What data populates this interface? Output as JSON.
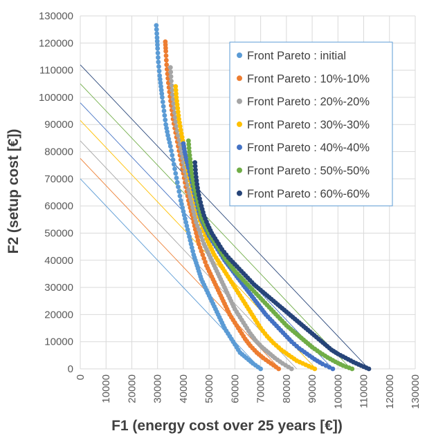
{
  "chart_data": {
    "type": "scatter",
    "title": "",
    "xlabel": "F1 (energy cost over 25 years [€])",
    "ylabel": "F2 (setup cost [€])",
    "xlim": [
      0,
      130000
    ],
    "ylim": [
      0,
      130000
    ],
    "x_ticks": [
      "0",
      "10000",
      "20000",
      "30000",
      "40000",
      "50000",
      "60000",
      "70000",
      "80000",
      "90000",
      "100000",
      "110000",
      "120000",
      "130000"
    ],
    "y_ticks": [
      "0",
      "10000",
      "20000",
      "30000",
      "40000",
      "50000",
      "60000",
      "70000",
      "80000",
      "90000",
      "100000",
      "110000",
      "120000",
      "130000"
    ],
    "grid": true,
    "legend_position": "top-right",
    "series": [
      {
        "name": "Front Pareto : initial",
        "color": "#5B9BD5",
        "points": [
          [
            29500,
            126500
          ],
          [
            29800,
            122000
          ],
          [
            30000,
            118000
          ],
          [
            30300,
            113000
          ],
          [
            30800,
            108000
          ],
          [
            31300,
            104000
          ],
          [
            31800,
            100000
          ],
          [
            32500,
            95000
          ],
          [
            33200,
            90000
          ],
          [
            34000,
            86000
          ],
          [
            35000,
            82000
          ],
          [
            36000,
            77000
          ],
          [
            37000,
            72000
          ],
          [
            38000,
            67000
          ],
          [
            39000,
            62000
          ],
          [
            40000,
            58000
          ],
          [
            41000,
            54000
          ],
          [
            42000,
            50000
          ],
          [
            43000,
            46000
          ],
          [
            44000,
            42000
          ],
          [
            45000,
            39000
          ],
          [
            46000,
            36000
          ],
          [
            47000,
            33000
          ],
          [
            48500,
            30000
          ],
          [
            50000,
            27000
          ],
          [
            51500,
            24000
          ],
          [
            53000,
            21000
          ],
          [
            54500,
            18000
          ],
          [
            56000,
            15000
          ],
          [
            58000,
            12000
          ],
          [
            60000,
            9000
          ],
          [
            62000,
            6000
          ],
          [
            64500,
            4000
          ],
          [
            67000,
            2000
          ],
          [
            70000,
            0
          ]
        ],
        "line": [
          [
            0,
            70000
          ],
          [
            70000,
            0
          ]
        ]
      },
      {
        "name": "Front Pareto : 10%-10%",
        "color": "#ED7D31",
        "points": [
          [
            33000,
            120500
          ],
          [
            33200,
            117000
          ],
          [
            33500,
            112000
          ],
          [
            34000,
            107000
          ],
          [
            34600,
            102000
          ],
          [
            35300,
            97000
          ],
          [
            36000,
            92000
          ],
          [
            37000,
            87000
          ],
          [
            38000,
            82000
          ],
          [
            39000,
            77000
          ],
          [
            40000,
            72000
          ],
          [
            41000,
            67000
          ],
          [
            42000,
            62000
          ],
          [
            43000,
            58000
          ],
          [
            44000,
            54000
          ],
          [
            45000,
            50000
          ],
          [
            46000,
            46000
          ],
          [
            47500,
            42000
          ],
          [
            49000,
            38000
          ],
          [
            50500,
            35000
          ],
          [
            52000,
            32000
          ],
          [
            53500,
            29000
          ],
          [
            55000,
            26000
          ],
          [
            56500,
            23000
          ],
          [
            58000,
            20000
          ],
          [
            60000,
            17000
          ],
          [
            62000,
            14000
          ],
          [
            64000,
            11000
          ],
          [
            66000,
            8500
          ],
          [
            68500,
            6000
          ],
          [
            71000,
            4000
          ],
          [
            74000,
            2000
          ],
          [
            77000,
            0
          ]
        ],
        "line": [
          [
            0,
            77500
          ],
          [
            77500,
            0
          ]
        ]
      },
      {
        "name": "Front Pareto : 20%-20%",
        "color": "#A5A5A5",
        "points": [
          [
            35000,
            111000
          ],
          [
            35300,
            106000
          ],
          [
            35800,
            101000
          ],
          [
            36400,
            96000
          ],
          [
            37000,
            91000
          ],
          [
            38000,
            86000
          ],
          [
            39000,
            81000
          ],
          [
            40000,
            76000
          ],
          [
            41000,
            71000
          ],
          [
            42000,
            66000
          ],
          [
            43000,
            62000
          ],
          [
            44000,
            58000
          ],
          [
            45000,
            54000
          ],
          [
            46500,
            50000
          ],
          [
            48000,
            46000
          ],
          [
            49500,
            43000
          ],
          [
            51000,
            40000
          ],
          [
            52500,
            37000
          ],
          [
            54000,
            34000
          ],
          [
            55500,
            31000
          ],
          [
            57000,
            28000
          ],
          [
            58500,
            25000
          ],
          [
            60000,
            22000
          ],
          [
            62000,
            19000
          ],
          [
            64000,
            16000
          ],
          [
            66000,
            13000
          ],
          [
            68000,
            10500
          ],
          [
            70500,
            8000
          ],
          [
            73000,
            6000
          ],
          [
            75500,
            4000
          ],
          [
            78500,
            2000
          ],
          [
            82000,
            0
          ]
        ],
        "line": [
          [
            0,
            84000
          ],
          [
            84000,
            0
          ]
        ]
      },
      {
        "name": "Front Pareto : 30%-30%",
        "color": "#FFC000",
        "points": [
          [
            37000,
            104000
          ],
          [
            37300,
            100000
          ],
          [
            37800,
            96000
          ],
          [
            38300,
            92000
          ],
          [
            39000,
            88000
          ],
          [
            39800,
            84000
          ],
          [
            40500,
            80000
          ],
          [
            41200,
            76000
          ],
          [
            42000,
            72000
          ],
          [
            43000,
            68000
          ],
          [
            44000,
            64000
          ],
          [
            45000,
            60000
          ],
          [
            46000,
            56000
          ],
          [
            47500,
            52000
          ],
          [
            49000,
            48000
          ],
          [
            50500,
            45000
          ],
          [
            52000,
            42000
          ],
          [
            54000,
            39000
          ],
          [
            56000,
            36000
          ],
          [
            58000,
            33000
          ],
          [
            60000,
            30000
          ],
          [
            62000,
            27000
          ],
          [
            64000,
            24000
          ],
          [
            66000,
            21000
          ],
          [
            68000,
            18000
          ],
          [
            70000,
            15000
          ],
          [
            72500,
            12000
          ],
          [
            75000,
            9500
          ],
          [
            78000,
            7000
          ],
          [
            81000,
            5000
          ],
          [
            84000,
            3000
          ],
          [
            87500,
            1500
          ],
          [
            91000,
            0
          ]
        ],
        "line": [
          [
            0,
            91500
          ],
          [
            91500,
            0
          ]
        ]
      },
      {
        "name": "Front Pareto : 40%-40%",
        "color": "#4472C4",
        "points": [
          [
            40000,
            83000
          ],
          [
            40500,
            80000
          ],
          [
            41200,
            77000
          ],
          [
            42000,
            74000
          ],
          [
            43000,
            70000
          ],
          [
            44000,
            66000
          ],
          [
            45000,
            62000
          ],
          [
            46000,
            58000
          ],
          [
            47000,
            55000
          ],
          [
            48500,
            52000
          ],
          [
            50000,
            49000
          ],
          [
            52000,
            46000
          ],
          [
            54000,
            43000
          ],
          [
            56000,
            40000
          ],
          [
            58000,
            37500
          ],
          [
            60000,
            35000
          ],
          [
            62000,
            32500
          ],
          [
            64000,
            30000
          ],
          [
            66000,
            27500
          ],
          [
            68000,
            25000
          ],
          [
            70000,
            22500
          ],
          [
            72000,
            20000
          ],
          [
            74500,
            17500
          ],
          [
            77000,
            15000
          ],
          [
            79500,
            12500
          ],
          [
            82000,
            10000
          ],
          [
            85000,
            7500
          ],
          [
            88000,
            5500
          ],
          [
            91000,
            3500
          ],
          [
            94000,
            1800
          ],
          [
            98000,
            0
          ]
        ],
        "line": [
          [
            0,
            98000
          ],
          [
            98000,
            0
          ]
        ]
      },
      {
        "name": "Front Pareto : 50%-50%",
        "color": "#70AD47",
        "points": [
          [
            42000,
            84000
          ],
          [
            42300,
            80000
          ],
          [
            42800,
            76000
          ],
          [
            43300,
            72000
          ],
          [
            44000,
            68000
          ],
          [
            45000,
            64000
          ],
          [
            46000,
            60000
          ],
          [
            47000,
            56000
          ],
          [
            48500,
            53000
          ],
          [
            50000,
            50000
          ],
          [
            52000,
            47000
          ],
          [
            54000,
            44000
          ],
          [
            56000,
            41000
          ],
          [
            58000,
            38500
          ],
          [
            60000,
            36000
          ],
          [
            62500,
            33500
          ],
          [
            65000,
            31000
          ],
          [
            67500,
            28500
          ],
          [
            70000,
            26000
          ],
          [
            72500,
            23500
          ],
          [
            75000,
            21000
          ],
          [
            77500,
            18500
          ],
          [
            80000,
            16000
          ],
          [
            82500,
            14000
          ],
          [
            85000,
            12000
          ],
          [
            87500,
            10000
          ],
          [
            90000,
            8000
          ],
          [
            93000,
            6000
          ],
          [
            96000,
            4200
          ],
          [
            99000,
            2600
          ],
          [
            102000,
            1200
          ],
          [
            105500,
            0
          ]
        ],
        "line": [
          [
            0,
            105000
          ],
          [
            105000,
            0
          ]
        ]
      },
      {
        "name": "Front Pareto : 60%-60%",
        "color": "#264478",
        "points": [
          [
            44500,
            76000
          ],
          [
            44800,
            72000
          ],
          [
            45300,
            68000
          ],
          [
            46000,
            64000
          ],
          [
            47000,
            60000
          ],
          [
            48000,
            56500
          ],
          [
            49500,
            53000
          ],
          [
            51000,
            50000
          ],
          [
            53000,
            47000
          ],
          [
            55000,
            44000
          ],
          [
            57500,
            41000
          ],
          [
            60000,
            38500
          ],
          [
            62500,
            36000
          ],
          [
            65000,
            33500
          ],
          [
            67500,
            31000
          ],
          [
            70000,
            29000
          ],
          [
            72500,
            27000
          ],
          [
            75000,
            25000
          ],
          [
            77500,
            23000
          ],
          [
            80000,
            21000
          ],
          [
            82500,
            19000
          ],
          [
            85000,
            17000
          ],
          [
            87500,
            15000
          ],
          [
            90000,
            13000
          ],
          [
            92500,
            11000
          ],
          [
            95000,
            9000
          ],
          [
            97500,
            7000
          ],
          [
            100000,
            5500
          ],
          [
            103000,
            4000
          ],
          [
            106000,
            2500
          ],
          [
            109000,
            1200
          ],
          [
            112000,
            0
          ]
        ],
        "line": [
          [
            0,
            112000
          ],
          [
            112000,
            0
          ]
        ]
      }
    ]
  }
}
